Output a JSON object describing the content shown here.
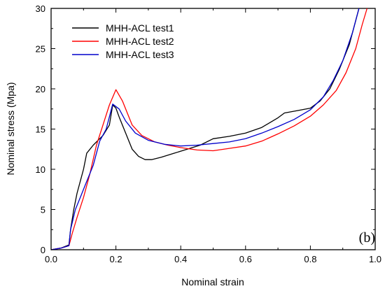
{
  "chart_data": {
    "type": "line",
    "xlabel": "Nominal strain",
    "ylabel": "Nominal stress (Mpa)",
    "xlim": [
      0.0,
      1.0
    ],
    "ylim": [
      0,
      30
    ],
    "x_ticks": [
      "0.0",
      "0.2",
      "0.4",
      "0.6",
      "0.8",
      "1.0"
    ],
    "y_ticks": [
      "0",
      "5",
      "10",
      "15",
      "20",
      "25",
      "30"
    ],
    "panel_label": "(b)",
    "legend_position": "top-left",
    "grid": false,
    "series": [
      {
        "name": "MHH-ACL test1",
        "color": "#000000",
        "points": [
          [
            0.0,
            0.0
          ],
          [
            0.03,
            0.2
          ],
          [
            0.055,
            0.6
          ],
          [
            0.06,
            2.5
          ],
          [
            0.07,
            5.0
          ],
          [
            0.08,
            7.0
          ],
          [
            0.1,
            10.0
          ],
          [
            0.11,
            12.0
          ],
          [
            0.13,
            13.0
          ],
          [
            0.16,
            14.2
          ],
          [
            0.18,
            15.5
          ],
          [
            0.19,
            18.0
          ],
          [
            0.2,
            17.6
          ],
          [
            0.21,
            16.5
          ],
          [
            0.23,
            14.5
          ],
          [
            0.25,
            12.5
          ],
          [
            0.27,
            11.6
          ],
          [
            0.29,
            11.2
          ],
          [
            0.31,
            11.2
          ],
          [
            0.34,
            11.5
          ],
          [
            0.38,
            12.0
          ],
          [
            0.42,
            12.5
          ],
          [
            0.46,
            13.0
          ],
          [
            0.5,
            13.8
          ],
          [
            0.55,
            14.1
          ],
          [
            0.6,
            14.5
          ],
          [
            0.65,
            15.2
          ],
          [
            0.7,
            16.4
          ],
          [
            0.72,
            17.0
          ],
          [
            0.76,
            17.3
          ],
          [
            0.8,
            17.6
          ],
          [
            0.83,
            18.5
          ],
          [
            0.86,
            20.0
          ],
          [
            0.89,
            22.5
          ],
          [
            0.92,
            25.5
          ],
          [
            0.94,
            28.5
          ],
          [
            0.95,
            30.0
          ]
        ]
      },
      {
        "name": "MHH-ACL test2",
        "color": "#ff0000",
        "points": [
          [
            0.0,
            0.0
          ],
          [
            0.03,
            0.2
          ],
          [
            0.055,
            0.5
          ],
          [
            0.065,
            2.0
          ],
          [
            0.08,
            4.0
          ],
          [
            0.1,
            6.5
          ],
          [
            0.12,
            9.5
          ],
          [
            0.14,
            13.0
          ],
          [
            0.16,
            15.5
          ],
          [
            0.18,
            18.0
          ],
          [
            0.2,
            19.9
          ],
          [
            0.22,
            18.5
          ],
          [
            0.25,
            15.5
          ],
          [
            0.28,
            14.2
          ],
          [
            0.32,
            13.4
          ],
          [
            0.36,
            13.0
          ],
          [
            0.4,
            12.7
          ],
          [
            0.45,
            12.4
          ],
          [
            0.5,
            12.3
          ],
          [
            0.55,
            12.6
          ],
          [
            0.6,
            12.9
          ],
          [
            0.65,
            13.5
          ],
          [
            0.7,
            14.4
          ],
          [
            0.75,
            15.4
          ],
          [
            0.8,
            16.6
          ],
          [
            0.84,
            18.0
          ],
          [
            0.88,
            19.8
          ],
          [
            0.91,
            22.0
          ],
          [
            0.94,
            25.0
          ],
          [
            0.96,
            28.0
          ],
          [
            0.975,
            30.0
          ]
        ]
      },
      {
        "name": "MHH-ACL test3",
        "color": "#0000cc",
        "points": [
          [
            0.0,
            0.0
          ],
          [
            0.03,
            0.2
          ],
          [
            0.055,
            0.5
          ],
          [
            0.06,
            2.5
          ],
          [
            0.075,
            5.0
          ],
          [
            0.09,
            6.5
          ],
          [
            0.11,
            8.5
          ],
          [
            0.13,
            10.5
          ],
          [
            0.15,
            13.5
          ],
          [
            0.17,
            15.0
          ],
          [
            0.19,
            18.1
          ],
          [
            0.21,
            17.5
          ],
          [
            0.23,
            16.0
          ],
          [
            0.26,
            14.5
          ],
          [
            0.3,
            13.6
          ],
          [
            0.35,
            13.1
          ],
          [
            0.4,
            12.9
          ],
          [
            0.45,
            13.0
          ],
          [
            0.5,
            13.2
          ],
          [
            0.55,
            13.4
          ],
          [
            0.6,
            13.8
          ],
          [
            0.65,
            14.5
          ],
          [
            0.7,
            15.3
          ],
          [
            0.75,
            16.2
          ],
          [
            0.8,
            17.4
          ],
          [
            0.84,
            19.0
          ],
          [
            0.87,
            21.0
          ],
          [
            0.9,
            23.5
          ],
          [
            0.93,
            27.0
          ],
          [
            0.95,
            30.0
          ]
        ]
      }
    ]
  }
}
